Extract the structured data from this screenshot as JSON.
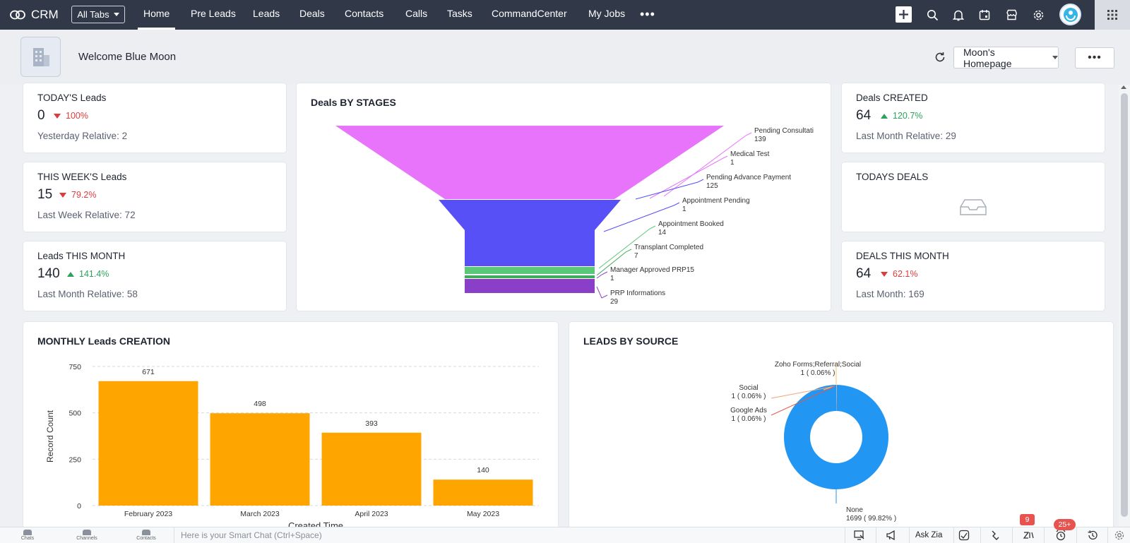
{
  "app": {
    "name": "CRM"
  },
  "nav": {
    "all_tabs": "All Tabs",
    "tabs": [
      "Home",
      "Pre Leads",
      "Leads",
      "Deals",
      "Contacts",
      "Calls",
      "Tasks",
      "CommandCenter",
      "My Jobs"
    ],
    "active_tab": "Home",
    "more": "•••"
  },
  "icons": {
    "top_right": [
      "plus-icon",
      "search-icon",
      "bell-icon",
      "calendar-icon",
      "marketplace-icon",
      "gear-icon",
      "avatar",
      "app-grid-icon"
    ],
    "bottom_right": [
      "screen-share-icon",
      "megaphone-icon",
      "ask-zia-label",
      "signals-icon",
      "activities-icon",
      "zia-icon",
      "alarm-icon",
      "history-icon",
      "settings-icon"
    ]
  },
  "header": {
    "welcome": "Welcome Blue Moon",
    "homepage_select": "Moon's Homepage",
    "more_button": "•••"
  },
  "kpis": {
    "today_leads": {
      "title": "TODAY'S Leads",
      "value": "0",
      "change": "100%",
      "direction": "down",
      "sub": "Yesterday Relative: 2"
    },
    "week_leads": {
      "title": "THIS WEEK'S Leads",
      "value": "15",
      "change": "79.2%",
      "direction": "down",
      "sub": "Last Week Relative: 72"
    },
    "month_leads": {
      "title": "Leads THIS MONTH",
      "value": "140",
      "change": "141.4%",
      "direction": "up",
      "sub": "Last Month Relative: 58"
    },
    "deals_created": {
      "title": "Deals CREATED",
      "value": "64",
      "change": "120.7%",
      "direction": "up",
      "sub": "Last Month Relative: 29"
    },
    "todays_deals": {
      "title": "TODAYS DEALS"
    },
    "deals_month": {
      "title": "DEALS THIS MONTH",
      "value": "64",
      "change": "62.1%",
      "direction": "down",
      "sub": "Last Month: 169"
    }
  },
  "colors": {
    "nav_bg": "#313949",
    "funnel_pending_consultation": "#e874fb",
    "funnel_pending_advance_payment": "#5750f7",
    "funnel_appointment_booked": "#5ac878",
    "funnel_transplant_completed": "#3daa5c",
    "funnel_prp_informations": "#8a3fc9",
    "bar_color": "#ffa500",
    "donut_color": "#2196f3",
    "up": "#2ca25a",
    "down": "#de3b3b"
  },
  "chart_data": [
    {
      "type": "funnel",
      "title": "Deals BY STAGES",
      "categories": [
        "Pending Consultation",
        "Medical Test",
        "Pending Advance Payment",
        "Appointment Pending",
        "Appointment Booked",
        "Transplant Completed",
        "Manager Approved PRP15",
        "PRP Informations"
      ],
      "labels_shown": [
        "Pending Consultati",
        "Medical Test",
        "Pending Advance Payment",
        "Appointment Pending",
        "Appointment Booked",
        "Transplant Completed",
        "Manager Approved PRP15",
        "PRP Informations"
      ],
      "values": [
        139,
        1,
        125,
        1,
        14,
        7,
        1,
        29
      ]
    },
    {
      "type": "bar",
      "title": "MONTHLY Leads CREATION",
      "categories": [
        "February 2023",
        "March 2023",
        "April 2023",
        "May 2023"
      ],
      "values": [
        671,
        498,
        393,
        140
      ],
      "xlabel": "Created Time",
      "ylabel": "Record Count",
      "ylim": [
        0,
        750
      ],
      "yticks": [
        0,
        250,
        500,
        750
      ],
      "grid": true
    },
    {
      "type": "pie",
      "variant": "donut",
      "title": "LEADS BY SOURCE",
      "categories": [
        "Zoho Forms;Referral;Social",
        "Social",
        "Google Ads",
        "None"
      ],
      "values": [
        1,
        1,
        1,
        1699
      ],
      "labels": [
        "1 ( 0.06% )",
        "1 ( 0.06% )",
        "1 ( 0.06% )",
        "1699 ( 99.82% )"
      ]
    }
  ],
  "bottom": {
    "left_items": [
      "Chats",
      "Channels",
      "Contacts"
    ],
    "smart_chat_placeholder": "Here is your Smart Chat (Ctrl+Space)",
    "ask_zia": "Ask Zia",
    "badge_zia": "9",
    "badge_alarm": "25+"
  }
}
